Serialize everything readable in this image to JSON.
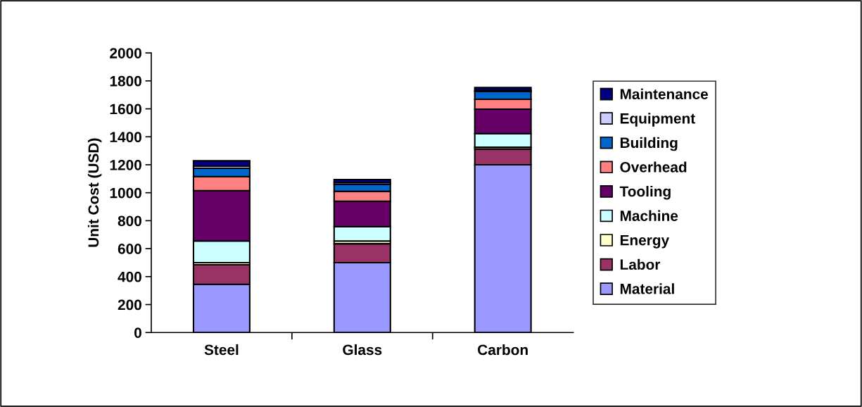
{
  "chart_data": {
    "type": "bar",
    "stacked": true,
    "ylabel": "Unit Cost (USD)",
    "categories": [
      "Steel",
      "Glass",
      "Carbon"
    ],
    "series": [
      {
        "name": "Material",
        "color": "#9999ff",
        "values": [
          345,
          500,
          1200
        ]
      },
      {
        "name": "Labor",
        "color": "#993366",
        "values": [
          140,
          135,
          112
        ]
      },
      {
        "name": "Energy",
        "color": "#ffffcc",
        "values": [
          15,
          20,
          13
        ]
      },
      {
        "name": "Machine",
        "color": "#ccffff",
        "values": [
          155,
          102,
          98
        ]
      },
      {
        "name": "Tooling",
        "color": "#660066",
        "values": [
          360,
          182,
          175
        ]
      },
      {
        "name": "Overhead",
        "color": "#ff8080",
        "values": [
          100,
          71,
          70
        ]
      },
      {
        "name": "Building",
        "color": "#0066cc",
        "values": [
          60,
          50,
          56
        ]
      },
      {
        "name": "Equipment",
        "color": "#ccccff",
        "values": [
          15,
          13,
          8
        ]
      },
      {
        "name": "Maintenance",
        "color": "#000080",
        "values": [
          38,
          21,
          20
        ]
      }
    ],
    "ylim": [
      0,
      2000
    ],
    "yticks": [
      0,
      200,
      400,
      600,
      800,
      1000,
      1200,
      1400,
      1600,
      1800,
      2000
    ],
    "grid": false,
    "legend": "right"
  }
}
